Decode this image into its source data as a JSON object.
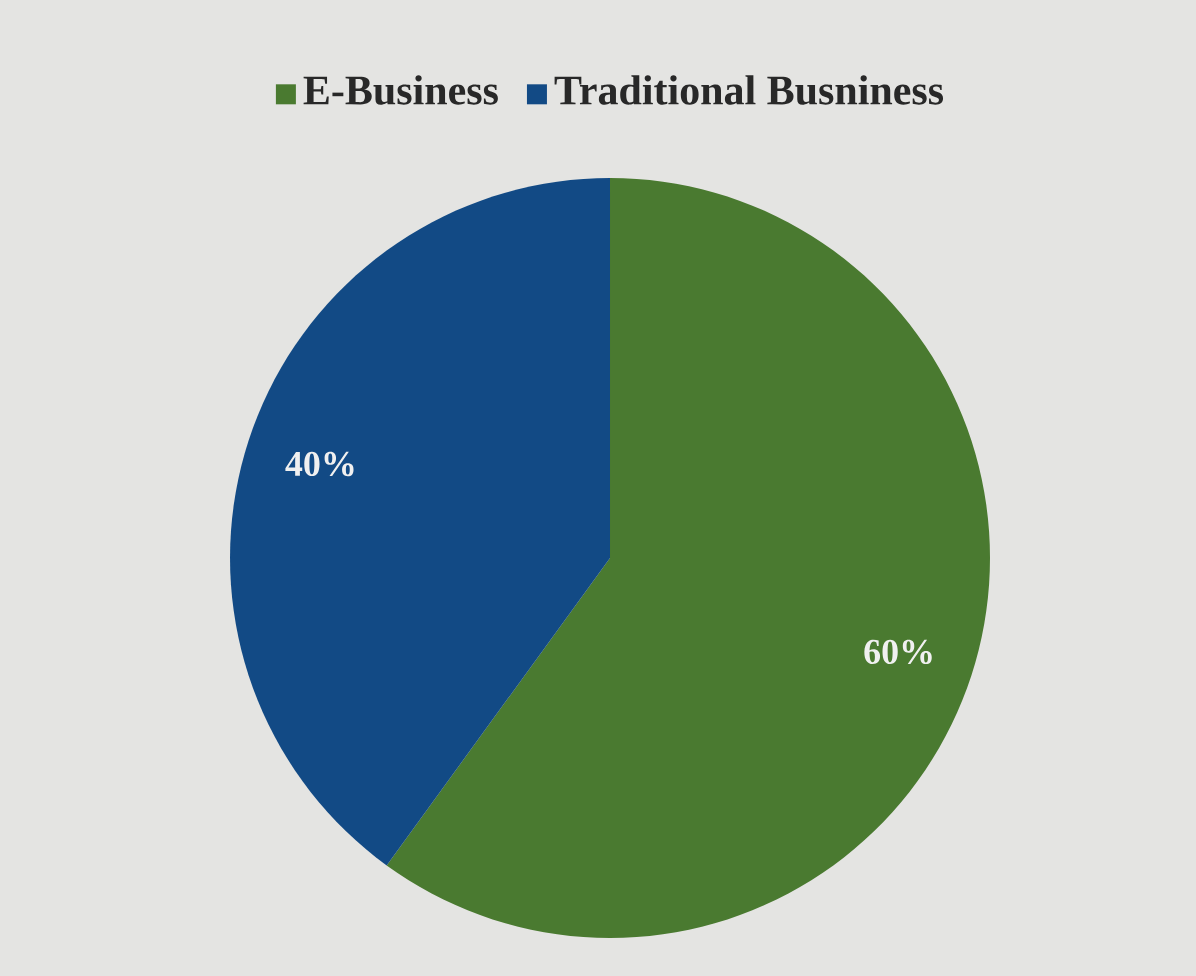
{
  "chart_data": {
    "type": "pie",
    "categories": [
      "E-Business",
      "Traditional Busniness"
    ],
    "values": [
      60,
      40
    ],
    "colors": [
      "#4a7a30",
      "#124a85"
    ],
    "value_labels": [
      "60%",
      "40%"
    ],
    "legend": "top"
  }
}
